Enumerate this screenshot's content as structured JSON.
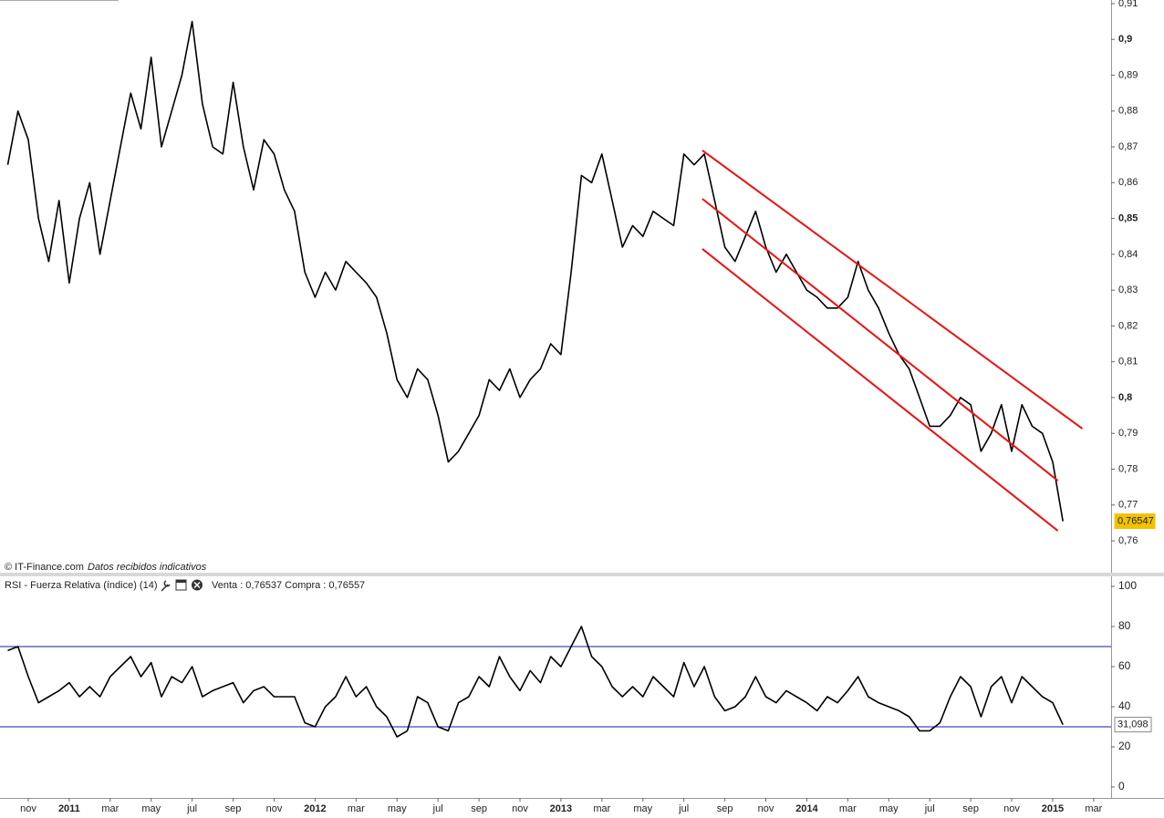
{
  "chart_data": [
    {
      "type": "line",
      "color": "#000000",
      "values": [
        0.865,
        0.88,
        0.872,
        0.85,
        0.838,
        0.855,
        0.832,
        0.85,
        0.86,
        0.84,
        0.855,
        0.87,
        0.885,
        0.875,
        0.895,
        0.87,
        0.88,
        0.89,
        0.905,
        0.882,
        0.87,
        0.868,
        0.888,
        0.87,
        0.858,
        0.872,
        0.868,
        0.858,
        0.852,
        0.835,
        0.828,
        0.835,
        0.83,
        0.838,
        0.835,
        0.832,
        0.828,
        0.818,
        0.805,
        0.8,
        0.808,
        0.805,
        0.795,
        0.782,
        0.785,
        0.79,
        0.795,
        0.805,
        0.802,
        0.808,
        0.8,
        0.805,
        0.808,
        0.815,
        0.812,
        0.835,
        0.862,
        0.86,
        0.868,
        0.855,
        0.842,
        0.848,
        0.845,
        0.852,
        0.85,
        0.848,
        0.868,
        0.865,
        0.868,
        0.855,
        0.842,
        0.838,
        0.845,
        0.852,
        0.842,
        0.835,
        0.84,
        0.835,
        0.83,
        0.828,
        0.825,
        0.825,
        0.828,
        0.838,
        0.83,
        0.825,
        0.818,
        0.812,
        0.808,
        0.8,
        0.792,
        0.792,
        0.795,
        0.8,
        0.798,
        0.785,
        0.79,
        0.798,
        0.785,
        0.798,
        0.792,
        0.79,
        0.782,
        0.76547,
        null,
        null,
        null
      ],
      "last": {
        "value": 0.76547,
        "label": "0,76547"
      },
      "ylim": [
        0.7511,
        0.911
      ],
      "yticks": [
        {
          "value": 0.76,
          "label": "0,76"
        },
        {
          "value": 0.77,
          "label": "0,77"
        },
        {
          "value": 0.78,
          "label": "0,78"
        },
        {
          "value": 0.79,
          "label": "0,79"
        },
        {
          "value": 0.8,
          "label": "0,8"
        },
        {
          "value": 0.81,
          "label": "0,81"
        },
        {
          "value": 0.82,
          "label": "0,82"
        },
        {
          "value": 0.83,
          "label": "0,83"
        },
        {
          "value": 0.84,
          "label": "0,84"
        },
        {
          "value": 0.85,
          "label": "0,85"
        },
        {
          "value": 0.86,
          "label": "0,86"
        },
        {
          "value": 0.87,
          "label": "0,87"
        },
        {
          "value": 0.88,
          "label": "0,88"
        },
        {
          "value": 0.89,
          "label": "0,89"
        },
        {
          "value": 0.9,
          "label": "0,9"
        },
        {
          "value": 0.91,
          "label": "0,91"
        }
      ],
      "channel_color": "#ee1111",
      "channel": [
        {
          "x": [
            67.8,
            104.9
          ],
          "y": [
            0.869,
            0.7913
          ]
        },
        {
          "x": [
            67.8,
            102.5
          ],
          "y": [
            0.8555,
            0.7768
          ]
        },
        {
          "x": [
            67.8,
            102.5
          ],
          "y": [
            0.8415,
            0.7628
          ]
        }
      ],
      "source": "© IT-Finance.com",
      "note": "Datos recibidos indicativos"
    },
    {
      "type": "line",
      "color": "#000000",
      "title": "RSI - Fuerza Relativa (índice) (14)",
      "quote": "Venta : 0,76537 Compra : 0,76557",
      "categories": [
        null,
        null,
        "nov",
        null,
        null,
        null,
        "2011",
        null,
        null,
        null,
        "mar",
        null,
        null,
        null,
        "may",
        null,
        null,
        null,
        "jul",
        null,
        null,
        null,
        "sep",
        null,
        null,
        null,
        "nov",
        null,
        null,
        null,
        "2012",
        null,
        null,
        null,
        "mar",
        null,
        null,
        null,
        "may",
        null,
        null,
        null,
        "jul",
        null,
        null,
        null,
        "sep",
        null,
        null,
        null,
        "nov",
        null,
        null,
        null,
        "2013",
        null,
        null,
        null,
        "mar",
        null,
        null,
        null,
        "may",
        null,
        null,
        null,
        "jul",
        null,
        null,
        null,
        "sep",
        null,
        null,
        null,
        "nov",
        null,
        null,
        null,
        "2014",
        null,
        null,
        null,
        "mar",
        null,
        null,
        null,
        "may",
        null,
        null,
        null,
        "jul",
        null,
        null,
        null,
        "sep",
        null,
        null,
        null,
        "nov",
        null,
        null,
        null,
        "2015",
        null,
        null,
        null,
        "mar"
      ],
      "values": [
        68,
        70,
        55,
        42,
        45,
        48,
        52,
        45,
        50,
        45,
        55,
        60,
        65,
        55,
        62,
        45,
        55,
        52,
        60,
        45,
        48,
        50,
        52,
        42,
        48,
        50,
        45,
        45,
        45,
        32,
        30,
        40,
        45,
        55,
        45,
        50,
        40,
        35,
        25,
        28,
        45,
        42,
        30,
        28,
        42,
        45,
        55,
        50,
        65,
        55,
        48,
        58,
        52,
        65,
        60,
        70,
        80,
        65,
        60,
        50,
        45,
        50,
        45,
        55,
        50,
        45,
        62,
        50,
        60,
        45,
        38,
        40,
        45,
        55,
        45,
        42,
        48,
        45,
        42,
        38,
        45,
        42,
        48,
        55,
        45,
        42,
        40,
        38,
        35,
        28,
        28,
        32,
        45,
        55,
        50,
        35,
        50,
        55,
        42,
        55,
        50,
        45,
        42,
        31.098,
        null,
        null,
        null
      ],
      "last": {
        "value": 31.098,
        "label": "31,098"
      },
      "levels": [
        70,
        30
      ],
      "level_color": "#1a1aa8",
      "ylim": [
        -4.1,
        105
      ],
      "yticks": [
        0,
        20,
        40,
        60,
        80,
        100
      ]
    }
  ]
}
